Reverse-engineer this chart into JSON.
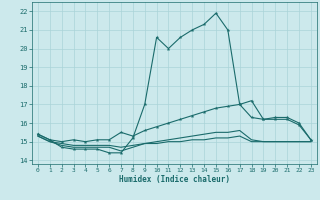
{
  "xlabel": "Humidex (Indice chaleur)",
  "bg_color": "#cce9ec",
  "grid_color": "#aad4d8",
  "line_color": "#1a6b6b",
  "x_ticks": [
    0,
    1,
    2,
    3,
    4,
    5,
    6,
    7,
    8,
    9,
    10,
    11,
    12,
    13,
    14,
    15,
    16,
    17,
    18,
    19,
    20,
    21,
    22,
    23
  ],
  "y_ticks": [
    14,
    15,
    16,
    17,
    18,
    19,
    20,
    21,
    22
  ],
  "xlim": [
    -0.5,
    23.5
  ],
  "ylim": [
    13.8,
    22.5
  ],
  "series": [
    {
      "x": [
        0,
        1,
        2,
        3,
        4,
        5,
        6,
        7,
        8,
        9,
        10,
        11,
        12,
        13,
        14,
        15,
        16,
        17,
        18,
        19,
        20,
        21,
        22,
        23
      ],
      "y": [
        15.4,
        15.1,
        14.7,
        14.6,
        14.6,
        14.6,
        14.4,
        14.4,
        15.2,
        17.0,
        20.6,
        20.0,
        20.6,
        21.0,
        21.3,
        21.9,
        21.0,
        17.0,
        17.2,
        16.2,
        16.3,
        16.3,
        16.0,
        15.1
      ],
      "markers": true
    },
    {
      "x": [
        0,
        1,
        2,
        3,
        4,
        5,
        6,
        7,
        8,
        9,
        10,
        11,
        12,
        13,
        14,
        15,
        16,
        17,
        18,
        19,
        20,
        21,
        22,
        23
      ],
      "y": [
        15.4,
        15.1,
        15.0,
        15.1,
        15.0,
        15.1,
        15.1,
        15.5,
        15.3,
        15.6,
        15.8,
        16.0,
        16.2,
        16.4,
        16.6,
        16.8,
        16.9,
        17.0,
        16.3,
        16.2,
        16.2,
        16.2,
        15.9,
        15.1
      ],
      "markers": true
    },
    {
      "x": [
        0,
        1,
        2,
        3,
        4,
        5,
        6,
        7,
        8,
        9,
        10,
        11,
        12,
        13,
        14,
        15,
        16,
        17,
        18,
        19,
        20,
        21,
        22,
        23
      ],
      "y": [
        15.3,
        15.0,
        14.8,
        14.7,
        14.7,
        14.7,
        14.7,
        14.5,
        14.7,
        14.9,
        15.0,
        15.1,
        15.2,
        15.3,
        15.4,
        15.5,
        15.5,
        15.6,
        15.1,
        15.0,
        15.0,
        15.0,
        15.0,
        15.0
      ],
      "markers": false
    },
    {
      "x": [
        0,
        1,
        2,
        3,
        4,
        5,
        6,
        7,
        8,
        9,
        10,
        11,
        12,
        13,
        14,
        15,
        16,
        17,
        18,
        19,
        20,
        21,
        22,
        23
      ],
      "y": [
        15.3,
        15.0,
        14.9,
        14.8,
        14.8,
        14.8,
        14.8,
        14.7,
        14.8,
        14.9,
        14.9,
        15.0,
        15.0,
        15.1,
        15.1,
        15.2,
        15.2,
        15.3,
        15.0,
        15.0,
        15.0,
        15.0,
        15.0,
        15.0
      ],
      "markers": false
    }
  ]
}
